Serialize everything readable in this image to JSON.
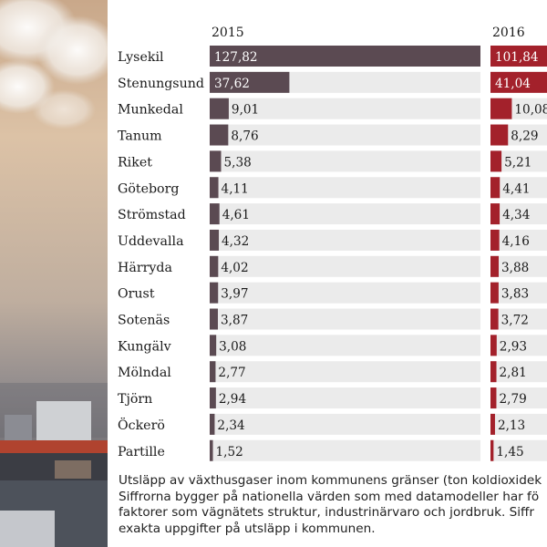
{
  "chart_data": {
    "type": "bar",
    "categories": [
      "Lysekil",
      "Stenungsund",
      "Munkedal",
      "Tanum",
      "Riket",
      "Göteborg",
      "Strömstad",
      "Uddevalla",
      "Härryda",
      "Orust",
      "Sotenäs",
      "Kungälv",
      "Mölndal",
      "Tjörn",
      "Öckerö",
      "Partille"
    ],
    "series": [
      {
        "name": "2015",
        "values": [
          127.82,
          37.62,
          9.01,
          8.76,
          5.38,
          4.11,
          4.61,
          4.32,
          4.02,
          3.97,
          3.87,
          3.08,
          2.77,
          2.94,
          2.34,
          1.52
        ],
        "labels": [
          "127,82",
          "37,62",
          "9,01",
          "8,76",
          "5,38",
          "4,11",
          "4,61",
          "4,32",
          "4,02",
          "3,97",
          "3,87",
          "3,08",
          "2,77",
          "2,94",
          "2,34",
          "1,52"
        ],
        "color": "#5b4a52"
      },
      {
        "name": "2016",
        "values": [
          101.84,
          41.04,
          10.08,
          8.29,
          5.21,
          4.41,
          4.34,
          4.16,
          3.88,
          3.83,
          3.72,
          2.93,
          2.81,
          2.79,
          2.13,
          1.45
        ],
        "labels": [
          "101,84",
          "41,04",
          "10,08",
          "8,29",
          "5,21",
          "4,41",
          "4,34",
          "4,16",
          "3,88",
          "3,83",
          "3,72",
          "2,93",
          "2,81",
          "2,79",
          "2,13",
          "1,45"
        ],
        "color": "#a3212b"
      }
    ],
    "title": "",
    "xlabel": "",
    "ylabel": "",
    "grid": false,
    "legend": "none"
  },
  "caption": [
    "Utsläpp av växthusgaser inom kommunens gränser (ton koldioxidek",
    "Siffrorna bygger på nationella värden som med datamodeller har fö",
    "faktorer som vägnätets struktur, industrinärvaro och jordbruk. Siffr",
    "exakta uppgifter på utsläpp i kommunen."
  ],
  "colors": {
    "track": "#ebebeb",
    "text": "#1a1a1a"
  }
}
